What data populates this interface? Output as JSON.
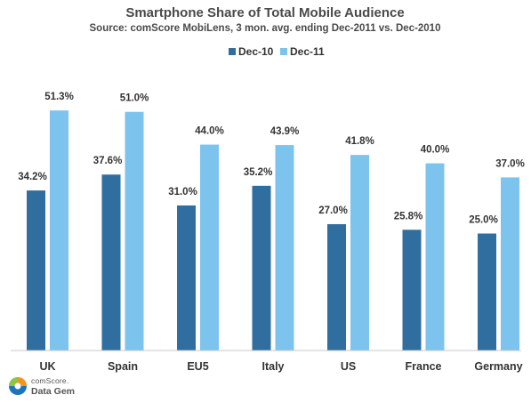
{
  "chart_data": {
    "type": "bar",
    "title": "Smartphone Share of Total Mobile Audience",
    "subtitle": "Source: comScore MobiLens, 3 mon. avg. ending Dec-2011 vs. Dec-2010",
    "categories": [
      "UK",
      "Spain",
      "EU5",
      "Italy",
      "US",
      "France",
      "Germany"
    ],
    "series": [
      {
        "name": "Dec-10",
        "color": "#2f6e9f",
        "values": [
          34.2,
          37.6,
          31.0,
          35.2,
          27.0,
          25.8,
          25.0
        ],
        "labels": [
          "34.2%",
          "37.6%",
          "31.0%",
          "35.2%",
          "27.0%",
          "25.8%",
          "25.0%"
        ]
      },
      {
        "name": "Dec-11",
        "color": "#7cc4ee",
        "values": [
          51.3,
          51.0,
          44.0,
          43.9,
          41.8,
          40.0,
          37.0
        ],
        "labels": [
          "51.3%",
          "51.0%",
          "44.0%",
          "43.9%",
          "41.8%",
          "40.0%",
          "37.0%"
        ]
      }
    ],
    "ylim": [
      0,
      60
    ],
    "grid": false,
    "legend": "top-center",
    "xlabel": "",
    "ylabel": ""
  },
  "logo": {
    "line1": "comScore.",
    "line2": "Data Gem",
    "icon": "comscore-globe-icon"
  }
}
